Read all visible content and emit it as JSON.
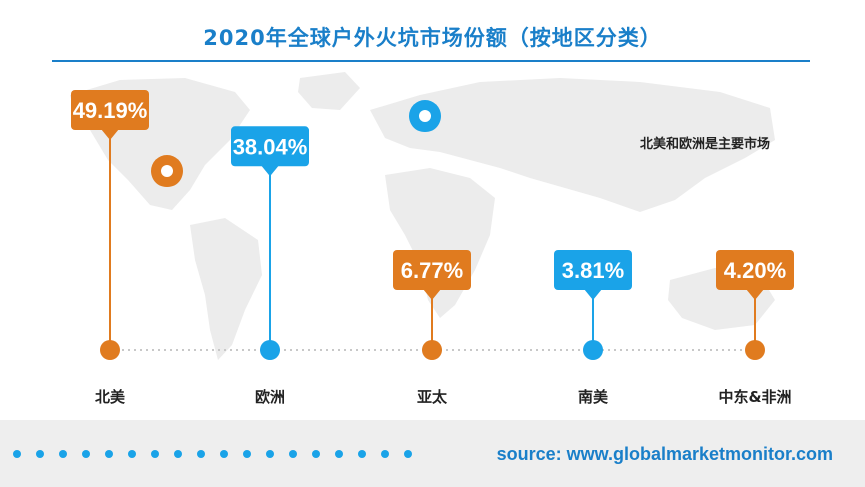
{
  "title": "2020年全球户外火坑市场份额（按地区分类）",
  "annotation": "北美和欧洲是主要市场",
  "source": "source: www.globalmarketmonitor.com",
  "colors": {
    "title": "#1a7fc9",
    "orange": "#e07b1f",
    "blue": "#1aa3e8",
    "map": "#ececec",
    "dotted_line": "#c8c8c8",
    "footer_bg": "#eeeeee"
  },
  "chart_data": {
    "type": "bar",
    "title": "2020年全球户外火坑市场份额（按地区分类）",
    "categories": [
      "北美",
      "欧洲",
      "亚太",
      "南美",
      "中东&非洲"
    ],
    "values": [
      49.19,
      38.04,
      6.77,
      3.81,
      4.2
    ],
    "value_labels": [
      "49.19%",
      "38.04%",
      "6.77%",
      "3.81%",
      "4.20%"
    ],
    "unit": "%",
    "marker_colors": [
      "orange",
      "blue",
      "orange",
      "blue",
      "orange"
    ]
  }
}
